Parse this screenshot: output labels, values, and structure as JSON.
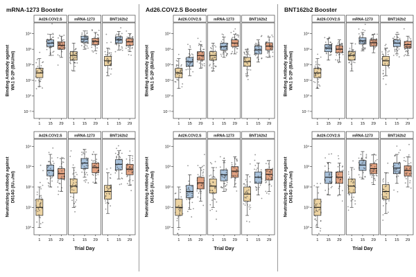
{
  "figure": {
    "column_titles": [
      "mRNA-1273 Booster",
      "Ad26.COV2.S Booster",
      "BNT162b2 Booster"
    ],
    "xlabel": "Trial Day",
    "x_tick_labels": [
      "1",
      "15",
      "29"
    ],
    "facet_labels": [
      "Ad26.COV2.S",
      "mRNA-1273",
      "BNT162b2"
    ],
    "stats_order": "[whisker_low, q1, median, q3, whisker_high]",
    "colors": {
      "day_boxes": [
        "#ecd3a2",
        "#a9c2db",
        "#e2a281"
      ],
      "points": "#3a3a3a",
      "panel_border": "#444444",
      "axis": "#222222",
      "divider": "#999999",
      "background": "#ffffff"
    }
  },
  "chart_data": [
    {
      "type": "box",
      "booster": "mRNA-1273 Booster",
      "assay": "Binding Antibody against WA1 S-2P (BAU/ml)",
      "ylabel_lines": [
        "Binding Antibody against",
        "WA1 S-2P (BAU/ml)"
      ],
      "y_scale": "log10",
      "y_tick_exponents": [
        -1,
        0,
        1,
        2,
        3,
        4
      ],
      "y_log_range": [
        -1.45,
        4.7
      ],
      "x_categories": [
        "1",
        "15",
        "29"
      ],
      "facets": [
        {
          "label": "Ad26.COV2.S",
          "boxes": [
            {
              "day": "1",
              "stats": [
                4,
                15,
                30,
                60,
                250
              ]
            },
            {
              "day": "15",
              "stats": [
                400,
                1500,
                2500,
                4000,
                9000
              ]
            },
            {
              "day": "29",
              "stats": [
                300,
                1000,
                1800,
                3000,
                7000
              ]
            }
          ]
        },
        {
          "label": "mRNA-1273",
          "boxes": [
            {
              "day": "1",
              "stats": [
                40,
                200,
                400,
                700,
                2500
              ]
            },
            {
              "day": "15",
              "stats": [
                1000,
                2800,
                4500,
                7000,
                15000
              ]
            },
            {
              "day": "29",
              "stats": [
                800,
                2000,
                3200,
                5000,
                12000
              ]
            }
          ]
        },
        {
          "label": "BNT162b2",
          "boxes": [
            {
              "day": "1",
              "stats": [
                20,
                90,
                180,
                350,
                1200
              ]
            },
            {
              "day": "15",
              "stats": [
                900,
                2500,
                4000,
                6500,
                14000
              ]
            },
            {
              "day": "29",
              "stats": [
                700,
                1800,
                3000,
                4800,
                10000
              ]
            }
          ]
        }
      ]
    },
    {
      "type": "box",
      "booster": "mRNA-1273 Booster",
      "assay": "Neutralizing Antibody against D614G (IU50/ml)",
      "ylabel_lines": [
        "Neutralizing Antibody against",
        "D614G (IU₅₀/ml)"
      ],
      "y_scale": "log10",
      "y_tick_exponents": [
        0,
        1,
        2,
        3,
        4
      ],
      "y_log_range": [
        -0.35,
        4.35
      ],
      "x_categories": [
        "1",
        "15",
        "29"
      ],
      "facets": [
        {
          "label": "Ad26.COV2.S",
          "boxes": [
            {
              "day": "1",
              "stats": [
                1,
                4,
                10,
                25,
                100
              ]
            },
            {
              "day": "15",
              "stats": [
                100,
                350,
                650,
                1200,
                4000
              ]
            },
            {
              "day": "29",
              "stats": [
                60,
                250,
                450,
                800,
                2500
              ]
            }
          ]
        },
        {
          "label": "mRNA-1273",
          "boxes": [
            {
              "day": "1",
              "stats": [
                10,
                50,
                110,
                250,
                900
              ]
            },
            {
              "day": "15",
              "stats": [
                300,
                800,
                1500,
                2500,
                7000
              ]
            },
            {
              "day": "29",
              "stats": [
                150,
                500,
                900,
                1500,
                4000
              ]
            }
          ]
        },
        {
          "label": "BNT162b2",
          "boxes": [
            {
              "day": "1",
              "stats": [
                5,
                25,
                60,
                120,
                500
              ]
            },
            {
              "day": "15",
              "stats": [
                250,
                700,
                1300,
                2200,
                6000
              ]
            },
            {
              "day": "29",
              "stats": [
                120,
                400,
                750,
                1300,
                3500
              ]
            }
          ]
        }
      ]
    },
    {
      "type": "box",
      "booster": "Ad26.COV2.S Booster",
      "assay": "Binding Antibody against WA1 S-2P (BAU/ml)",
      "ylabel_lines": [
        "Binding Antibody against",
        "WA1 S-2P (BAU/ml)"
      ],
      "y_scale": "log10",
      "y_tick_exponents": [
        -1,
        0,
        1,
        2,
        3,
        4
      ],
      "y_log_range": [
        -1.45,
        4.7
      ],
      "x_categories": [
        "1",
        "15",
        "29"
      ],
      "facets": [
        {
          "label": "Ad26.COV2.S",
          "boxes": [
            {
              "day": "1",
              "stats": [
                3,
                15,
                30,
                60,
                250
              ]
            },
            {
              "day": "15",
              "stats": [
                20,
                80,
                160,
                300,
                1000
              ]
            },
            {
              "day": "29",
              "stats": [
                60,
                200,
                400,
                700,
                2000
              ]
            }
          ]
        },
        {
          "label": "mRNA-1273",
          "boxes": [
            {
              "day": "1",
              "stats": [
                40,
                200,
                400,
                700,
                2500
              ]
            },
            {
              "day": "15",
              "stats": [
                300,
                900,
                1500,
                2500,
                6000
              ]
            },
            {
              "day": "29",
              "stats": [
                500,
                1500,
                2500,
                4000,
                9000
              ]
            }
          ]
        },
        {
          "label": "BNT162b2",
          "boxes": [
            {
              "day": "1",
              "stats": [
                20,
                80,
                160,
                300,
                1000
              ]
            },
            {
              "day": "15",
              "stats": [
                150,
                500,
                900,
                1600,
                4000
              ]
            },
            {
              "day": "29",
              "stats": [
                300,
                900,
                1600,
                2600,
                6000
              ]
            }
          ]
        }
      ]
    },
    {
      "type": "box",
      "booster": "Ad26.COV2.S Booster",
      "assay": "Neutralizing Antibody against D614G (IU50/ml)",
      "ylabel_lines": [
        "Neutralizing Antibody against",
        "D614G (IU₅₀/ml)"
      ],
      "y_scale": "log10",
      "y_tick_exponents": [
        0,
        1,
        2,
        3,
        4
      ],
      "y_log_range": [
        -0.35,
        4.35
      ],
      "x_categories": [
        "1",
        "15",
        "29"
      ],
      "facets": [
        {
          "label": "Ad26.COV2.S",
          "boxes": [
            {
              "day": "1",
              "stats": [
                1,
                4,
                10,
                25,
                100
              ]
            },
            {
              "day": "15",
              "stats": [
                8,
                30,
                60,
                120,
                400
              ]
            },
            {
              "day": "29",
              "stats": [
                20,
                80,
                160,
                300,
                900
              ]
            }
          ]
        },
        {
          "label": "mRNA-1273",
          "boxes": [
            {
              "day": "1",
              "stats": [
                10,
                50,
                110,
                250,
                900
              ]
            },
            {
              "day": "15",
              "stats": [
                60,
                200,
                400,
                700,
                2000
              ]
            },
            {
              "day": "29",
              "stats": [
                100,
                300,
                600,
                1000,
                3000
              ]
            }
          ]
        },
        {
          "label": "BNT162b2",
          "boxes": [
            {
              "day": "1",
              "stats": [
                4,
                20,
                45,
                100,
                400
              ]
            },
            {
              "day": "15",
              "stats": [
                40,
                150,
                300,
                550,
                1500
              ]
            },
            {
              "day": "29",
              "stats": [
                60,
                220,
                420,
                750,
                2000
              ]
            }
          ]
        }
      ]
    },
    {
      "type": "box",
      "booster": "BNT162b2 Booster",
      "assay": "Binding Antibody against WA1 S-2P (BAU/ml)",
      "ylabel_lines": [
        "Binding Antibody against",
        "WA1 S-2P (BAU/ml)"
      ],
      "y_scale": "log10",
      "y_tick_exponents": [
        -1,
        0,
        1,
        2,
        3,
        4
      ],
      "y_log_range": [
        -1.45,
        4.7
      ],
      "x_categories": [
        "1",
        "15",
        "29"
      ],
      "facets": [
        {
          "label": "Ad26.COV2.S",
          "boxes": [
            {
              "day": "1",
              "stats": [
                3,
                15,
                30,
                60,
                250
              ]
            },
            {
              "day": "15",
              "stats": [
                200,
                700,
                1200,
                2000,
                5000
              ]
            },
            {
              "day": "29",
              "stats": [
                150,
                600,
                1000,
                1700,
                4000
              ]
            }
          ]
        },
        {
          "label": "mRNA-1273",
          "boxes": [
            {
              "day": "1",
              "stats": [
                40,
                200,
                400,
                700,
                2500
              ]
            },
            {
              "day": "15",
              "stats": [
                800,
                2200,
                3500,
                5500,
                12000
              ]
            },
            {
              "day": "29",
              "stats": [
                600,
                1600,
                2600,
                4200,
                9000
              ]
            }
          ]
        },
        {
          "label": "BNT162b2",
          "boxes": [
            {
              "day": "1",
              "stats": [
                20,
                90,
                180,
                350,
                1200
              ]
            },
            {
              "day": "15",
              "stats": [
                500,
                1500,
                2500,
                4000,
                9000
              ]
            },
            {
              "day": "29",
              "stats": [
                400,
                1200,
                2000,
                3200,
                7000
              ]
            }
          ]
        }
      ]
    },
    {
      "type": "box",
      "booster": "BNT162b2 Booster",
      "assay": "Neutralizing Antibody against D614G (IU50/ml)",
      "ylabel_lines": [
        "Neutralizing Antibody against",
        "D614G (IU₅₀/ml)"
      ],
      "y_scale": "log10",
      "y_tick_exponents": [
        0,
        1,
        2,
        3,
        4
      ],
      "y_log_range": [
        -0.35,
        4.35
      ],
      "x_categories": [
        "1",
        "15",
        "29"
      ],
      "facets": [
        {
          "label": "Ad26.COV2.S",
          "boxes": [
            {
              "day": "1",
              "stats": [
                1,
                4,
                10,
                25,
                100
              ]
            },
            {
              "day": "15",
              "stats": [
                40,
                150,
                300,
                550,
                1600
              ]
            },
            {
              "day": "29",
              "stats": [
                40,
                150,
                300,
                550,
                1500
              ]
            }
          ]
        },
        {
          "label": "mRNA-1273",
          "boxes": [
            {
              "day": "1",
              "stats": [
                10,
                50,
                110,
                250,
                900
              ]
            },
            {
              "day": "15",
              "stats": [
                250,
                650,
                1200,
                2000,
                5500
              ]
            },
            {
              "day": "29",
              "stats": [
                130,
                450,
                800,
                1400,
                3800
              ]
            }
          ]
        },
        {
          "label": "BNT162b2",
          "boxes": [
            {
              "day": "1",
              "stats": [
                5,
                25,
                60,
                130,
                500
              ]
            },
            {
              "day": "15",
              "stats": [
                150,
                450,
                850,
                1500,
                4000
              ]
            },
            {
              "day": "29",
              "stats": [
                100,
                350,
                650,
                1100,
                3000
              ]
            }
          ]
        }
      ]
    }
  ]
}
